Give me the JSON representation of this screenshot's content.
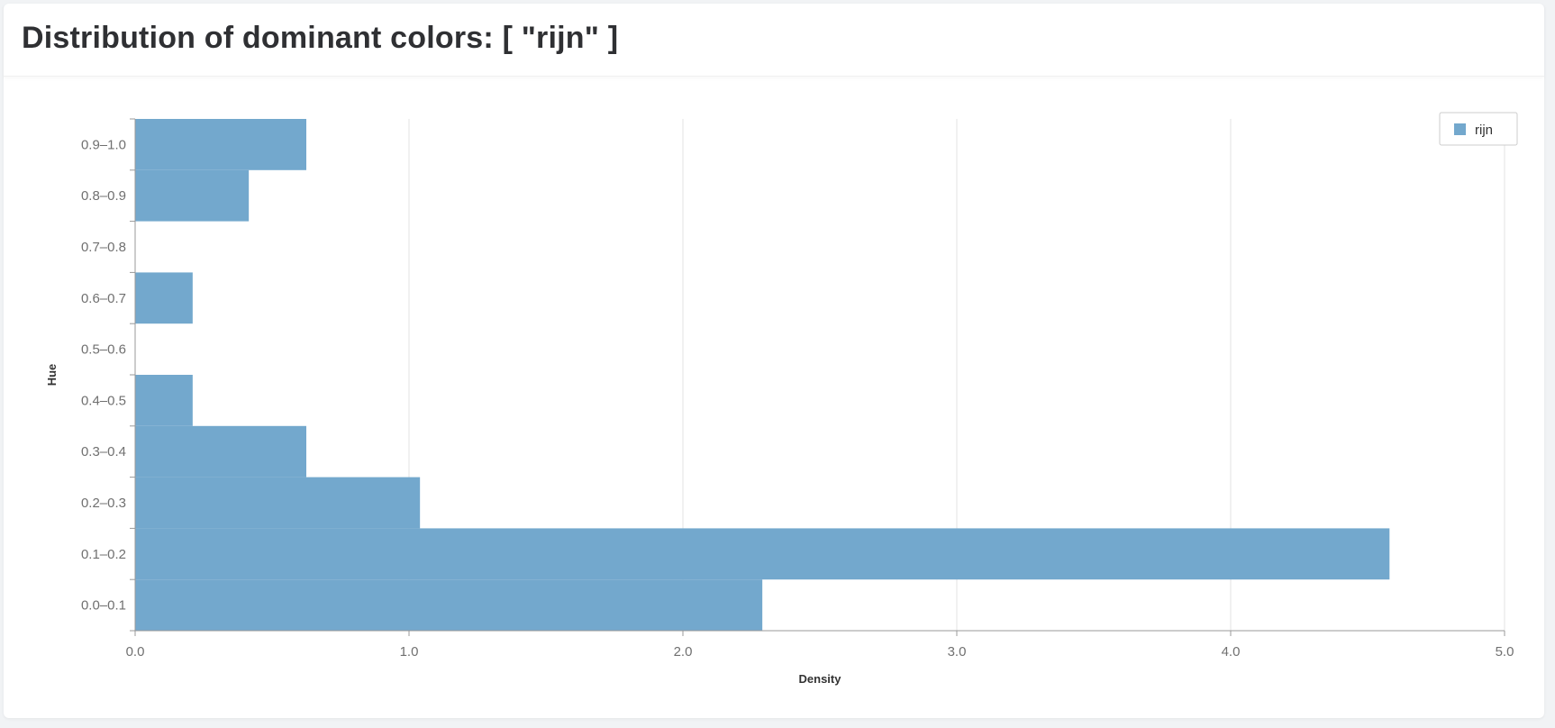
{
  "header": {
    "title": "Distribution of dominant colors: [ \"rijn\" ]"
  },
  "colors": {
    "bar": "#73a8cd",
    "grid": "#e3e3e3",
    "axis": "#999999"
  },
  "chart_data": {
    "type": "bar",
    "orientation": "horizontal",
    "title": "Distribution of dominant colors: [ \"rijn\" ]",
    "xlabel": "Density",
    "ylabel": "Hue",
    "xlim": [
      0,
      5
    ],
    "x_ticks": [
      "0.0",
      "1.0",
      "2.0",
      "3.0",
      "4.0",
      "5.0"
    ],
    "categories": [
      "0.0–0.1",
      "0.1–0.2",
      "0.2–0.3",
      "0.3–0.4",
      "0.4–0.5",
      "0.5–0.6",
      "0.6–0.7",
      "0.7–0.8",
      "0.8–0.9",
      "0.9–1.0"
    ],
    "series": [
      {
        "name": "rijn",
        "values": [
          2.29,
          4.58,
          1.04,
          0.625,
          0.21,
          0,
          0.21,
          0,
          0.415,
          0.625
        ]
      }
    ],
    "grid": "vertical",
    "legend_position": "top-right"
  }
}
